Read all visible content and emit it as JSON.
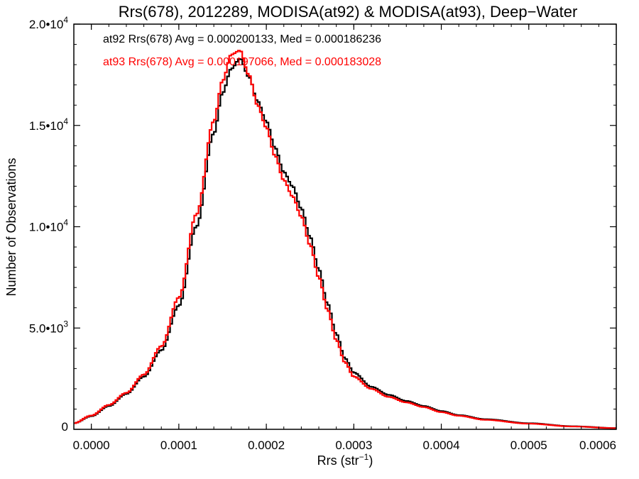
{
  "chart_data": {
    "type": "line",
    "title": "Rrs(678), 2012289, MODISA(at92) & MODISA(at93), Deep−Water",
    "xlabel_base": "Rrs (str",
    "xlabel_sup": "−1",
    "xlabel_end": ")",
    "ylabel": "Number of Observations",
    "xlim": [
      -2e-05,
      0.0006
    ],
    "ylim": [
      0,
      20000
    ],
    "x_ticks": [
      {
        "value": 0.0,
        "label": "0.0000"
      },
      {
        "value": 0.0001,
        "label": "0.0001"
      },
      {
        "value": 0.0002,
        "label": "0.0002"
      },
      {
        "value": 0.0003,
        "label": "0.0003"
      },
      {
        "value": 0.0004,
        "label": "0.0004"
      },
      {
        "value": 0.0005,
        "label": "0.0005"
      },
      {
        "value": 0.0006,
        "label": "0.0006"
      }
    ],
    "y_ticks": [
      {
        "value": 0,
        "mant": "0",
        "exp": ""
      },
      {
        "value": 5000,
        "mant": "5.0•10",
        "exp": "3"
      },
      {
        "value": 10000,
        "mant": "1.0•10",
        "exp": "4"
      },
      {
        "value": 15000,
        "mant": "1.5•10",
        "exp": "4"
      },
      {
        "value": 20000,
        "mant": "2.0•10",
        "exp": "4"
      }
    ],
    "legend": {
      "placement": "top-left"
    },
    "grid": false,
    "series": [
      {
        "name": "at92",
        "color": "#000000",
        "label": "at92 Rrs(678) Avg = 0.000200133, Med = 0.000186236",
        "points": [
          [
            -2e-05,
            300
          ],
          [
            0.0,
            650
          ],
          [
            2e-05,
            1150
          ],
          [
            4e-05,
            1750
          ],
          [
            6e-05,
            2600
          ],
          [
            8e-05,
            3900
          ],
          [
            0.0001,
            6100
          ],
          [
            0.00012,
            10000
          ],
          [
            0.00014,
            14600
          ],
          [
            0.00015,
            16600
          ],
          [
            0.00016,
            17800
          ],
          [
            0.00017,
            18300
          ],
          [
            0.00018,
            17400
          ],
          [
            0.00019,
            16200
          ],
          [
            0.0002,
            15200
          ],
          [
            0.00021,
            13900
          ],
          [
            0.00022,
            12700
          ],
          [
            0.00023,
            12000
          ],
          [
            0.00024,
            10900
          ],
          [
            0.00025,
            9500
          ],
          [
            0.00026,
            7900
          ],
          [
            0.00027,
            6200
          ],
          [
            0.00028,
            4700
          ],
          [
            0.00029,
            3500
          ],
          [
            0.0003,
            2800
          ],
          [
            0.00032,
            2100
          ],
          [
            0.00034,
            1700
          ],
          [
            0.00036,
            1400
          ],
          [
            0.00038,
            1150
          ],
          [
            0.0004,
            900
          ],
          [
            0.00042,
            700
          ],
          [
            0.00045,
            500
          ],
          [
            0.0005,
            300
          ],
          [
            0.00055,
            150
          ],
          [
            0.0006,
            60
          ]
        ]
      },
      {
        "name": "at93",
        "color": "#ff0000",
        "label": "at93 Rrs(678) Avg = 0.000197066, Med = 0.000183028",
        "points": [
          [
            -2e-05,
            300
          ],
          [
            0.0,
            680
          ],
          [
            2e-05,
            1200
          ],
          [
            4e-05,
            1800
          ],
          [
            6e-05,
            2700
          ],
          [
            8e-05,
            4100
          ],
          [
            0.0001,
            6500
          ],
          [
            0.00012,
            10600
          ],
          [
            0.00014,
            15200
          ],
          [
            0.00015,
            17200
          ],
          [
            0.00016,
            18500
          ],
          [
            0.00017,
            18700
          ],
          [
            0.00018,
            17500
          ],
          [
            0.00019,
            16000
          ],
          [
            0.0002,
            14900
          ],
          [
            0.00021,
            13500
          ],
          [
            0.00022,
            12300
          ],
          [
            0.00023,
            11500
          ],
          [
            0.00024,
            10500
          ],
          [
            0.00025,
            9100
          ],
          [
            0.00026,
            7500
          ],
          [
            0.00027,
            5900
          ],
          [
            0.00028,
            4400
          ],
          [
            0.00029,
            3300
          ],
          [
            0.0003,
            2600
          ],
          [
            0.00032,
            2000
          ],
          [
            0.00034,
            1600
          ],
          [
            0.00036,
            1330
          ],
          [
            0.00038,
            1100
          ],
          [
            0.0004,
            850
          ],
          [
            0.00042,
            670
          ],
          [
            0.00045,
            470
          ],
          [
            0.0005,
            280
          ],
          [
            0.00055,
            140
          ],
          [
            0.0006,
            55
          ]
        ]
      }
    ]
  }
}
